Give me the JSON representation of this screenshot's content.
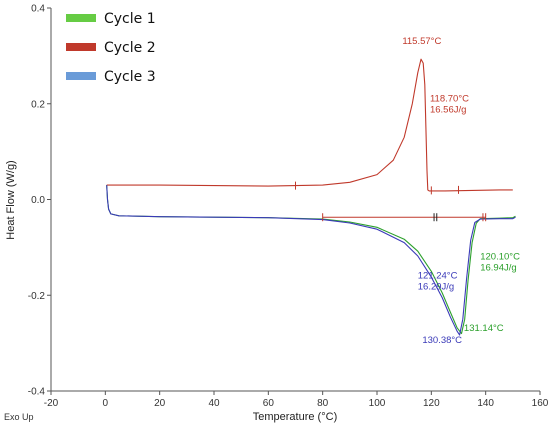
{
  "chart_data": {
    "type": "line",
    "xlabel": "Temperature (°C)",
    "ylabel": "Heat Flow (W/g)",
    "corner_label": "Exo Up",
    "xlim": [
      -20,
      160
    ],
    "ylim": [
      -0.4,
      0.4
    ],
    "x_ticks": [
      -20,
      0,
      20,
      40,
      60,
      80,
      100,
      120,
      140,
      160
    ],
    "y_ticks": [
      -0.4,
      -0.2,
      0.0,
      0.2,
      0.4
    ],
    "x_tick_labels": [
      "-20",
      "0",
      "20",
      "40",
      "60",
      "80",
      "100",
      "120",
      "140",
      "160"
    ],
    "y_tick_labels": [
      "-0.4",
      "-0.2",
      "0.0",
      "0.2",
      "0.4"
    ],
    "grid": false,
    "legend_position": "top-left",
    "series": [
      {
        "name": "Cycle 1",
        "color": "#2ca02c",
        "legend_color": "#66cc44",
        "points": [
          [
            0.5,
            0.03
          ],
          [
            0.8,
            0.0
          ],
          [
            1.2,
            -0.02
          ],
          [
            2,
            -0.03
          ],
          [
            5,
            -0.034
          ],
          [
            20,
            -0.036
          ],
          [
            40,
            -0.037
          ],
          [
            60,
            -0.038
          ],
          [
            80,
            -0.041
          ],
          [
            90,
            -0.047
          ],
          [
            100,
            -0.058
          ],
          [
            110,
            -0.083
          ],
          [
            115,
            -0.108
          ],
          [
            120,
            -0.15
          ],
          [
            124,
            -0.195
          ],
          [
            127,
            -0.235
          ],
          [
            129.5,
            -0.268
          ],
          [
            131.1,
            -0.28
          ],
          [
            132.3,
            -0.25
          ],
          [
            133.5,
            -0.17
          ],
          [
            135,
            -0.09
          ],
          [
            136.5,
            -0.05
          ],
          [
            138,
            -0.04
          ],
          [
            145,
            -0.039
          ],
          [
            150,
            -0.038
          ],
          [
            151,
            -0.035
          ]
        ]
      },
      {
        "name": "Cycle 2",
        "color": "#c0392b",
        "legend_color": "#c0392b",
        "points": [
          [
            0.5,
            0.03
          ],
          [
            20,
            0.03
          ],
          [
            40,
            0.029
          ],
          [
            60,
            0.028
          ],
          [
            80,
            0.03
          ],
          [
            90,
            0.036
          ],
          [
            100,
            0.052
          ],
          [
            106,
            0.082
          ],
          [
            110,
            0.13
          ],
          [
            113,
            0.2
          ],
          [
            115,
            0.265
          ],
          [
            116.2,
            0.293
          ],
          [
            117,
            0.285
          ],
          [
            117.6,
            0.24
          ],
          [
            118,
            0.15
          ],
          [
            118.4,
            0.06
          ],
          [
            118.7,
            0.02
          ],
          [
            119.2,
            0.018
          ],
          [
            125,
            0.018
          ],
          [
            135,
            0.019
          ],
          [
            145,
            0.02
          ],
          [
            150,
            0.02
          ]
        ]
      },
      {
        "name": "Cycle 3",
        "color": "#3a3ab8",
        "legend_color": "#6a9bd8",
        "points": [
          [
            0.5,
            0.03
          ],
          [
            0.8,
            0.0
          ],
          [
            1.2,
            -0.02
          ],
          [
            2,
            -0.03
          ],
          [
            5,
            -0.034
          ],
          [
            20,
            -0.036
          ],
          [
            40,
            -0.037
          ],
          [
            60,
            -0.038
          ],
          [
            80,
            -0.042
          ],
          [
            90,
            -0.049
          ],
          [
            100,
            -0.062
          ],
          [
            110,
            -0.09
          ],
          [
            115,
            -0.118
          ],
          [
            120,
            -0.162
          ],
          [
            124,
            -0.205
          ],
          [
            127,
            -0.245
          ],
          [
            129.5,
            -0.275
          ],
          [
            130.4,
            -0.283
          ],
          [
            131.6,
            -0.25
          ],
          [
            133,
            -0.165
          ],
          [
            134.5,
            -0.085
          ],
          [
            136,
            -0.048
          ],
          [
            138,
            -0.041
          ],
          [
            145,
            -0.04
          ],
          [
            150,
            -0.04
          ],
          [
            151,
            -0.037
          ]
        ]
      }
    ],
    "baseline": {
      "color": "#c0392b",
      "points": [
        [
          80,
          -0.037
        ],
        [
          140,
          -0.037
        ]
      ]
    },
    "markers": [
      {
        "x": 70,
        "y": 0.029,
        "color": "#c0392b"
      },
      {
        "x": 120,
        "y": 0.019,
        "color": "#c0392b"
      },
      {
        "x": 130,
        "y": 0.02,
        "color": "#c0392b"
      },
      {
        "x": 80,
        "y": -0.037,
        "color": "#c0392b"
      },
      {
        "x": 121,
        "y": -0.037,
        "color": "#222222"
      },
      {
        "x": 122,
        "y": -0.037,
        "color": "#222222"
      },
      {
        "x": 139,
        "y": -0.037,
        "color": "#c0392b"
      },
      {
        "x": 140,
        "y": -0.037,
        "color": "#c0392b"
      }
    ],
    "annotations": [
      {
        "lines": [
          "115.57°C"
        ],
        "x": 116.5,
        "y": 0.325,
        "color": "#c0392b",
        "anchor": "middle"
      },
      {
        "lines": [
          "118.70°C",
          "16.56J/g"
        ],
        "x": 119.5,
        "y": 0.205,
        "color": "#c0392b",
        "anchor": "start"
      },
      {
        "lines": [
          "120.10°C",
          "16.94J/g"
        ],
        "x": 138,
        "y": -0.125,
        "color": "#2ca02c",
        "anchor": "start"
      },
      {
        "lines": [
          "121.24°C",
          "16.29J/g"
        ],
        "x": 115,
        "y": -0.165,
        "color": "#3a3ab8",
        "anchor": "start"
      },
      {
        "lines": [
          "131.14°C"
        ],
        "x": 132,
        "y": -0.275,
        "color": "#2ca02c",
        "anchor": "start"
      },
      {
        "lines": [
          "130.38°C"
        ],
        "x": 124,
        "y": -0.3,
        "color": "#3a3ab8",
        "anchor": "middle"
      }
    ]
  }
}
